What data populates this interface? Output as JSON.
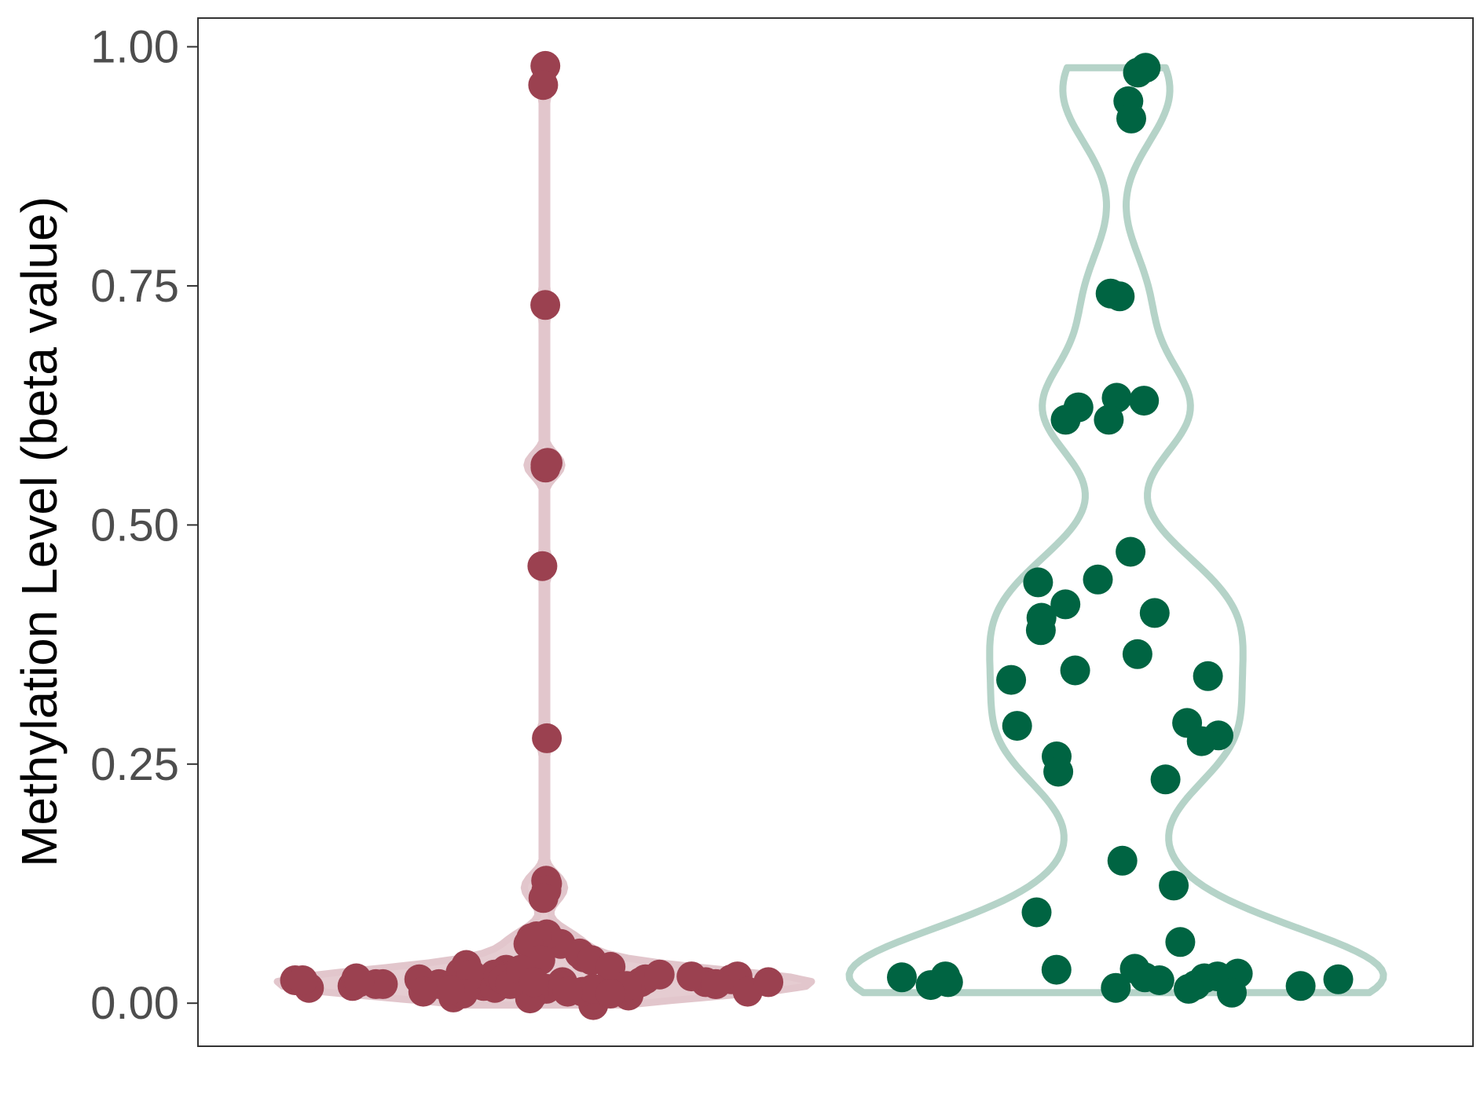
{
  "chart_data": {
    "type": "scatter",
    "ylabel": "Methylation Level (beta value)",
    "ylim": [
      -0.045,
      1.03
    ],
    "yticks": [
      0.0,
      0.25,
      0.5,
      0.75,
      1.0
    ],
    "ytick_labels": [
      "0.00",
      "0.25",
      "0.50",
      "0.75",
      "1.00"
    ],
    "grid": false,
    "series": [
      {
        "color": "#9b4150",
        "violin_color": "#e2c6cc",
        "values": [
          0.98,
          0.96,
          0.73,
          0.565,
          0.56,
          0.563,
          0.457,
          0.277,
          0.128,
          0.125,
          0.118,
          0.11,
          0.062,
          0.068,
          0.072,
          0.07,
          0.062,
          0.048,
          0.052,
          0.045,
          0.04,
          0.045,
          0.038,
          0.035,
          0.032,
          0.03,
          0.028,
          0.025,
          0.025,
          0.024,
          0.022,
          0.02,
          0.02,
          0.018,
          0.018,
          0.015,
          0.012,
          0.01,
          0.008,
          0.006,
          0.005,
          -0.002,
          0.028,
          0.03,
          0.022,
          0.02,
          0.025,
          0.018,
          0.012,
          0.026,
          0.022,
          0.016,
          0.014,
          0.01,
          0.03,
          0.028,
          0.025,
          0.022,
          0.02,
          0.016,
          0.025,
          0.022,
          0.018,
          0.024,
          0.02,
          0.014,
          0.035,
          0.012,
          0.03,
          0.022,
          0.018,
          0.02,
          0.015,
          0.01,
          0.024,
          0.012
        ]
      },
      {
        "color": "#006442",
        "violin_color": "#b5d3c8",
        "values": [
          0.978,
          0.973,
          0.943,
          0.925,
          0.742,
          0.739,
          0.633,
          0.63,
          0.623,
          0.61,
          0.61,
          0.472,
          0.443,
          0.44,
          0.417,
          0.408,
          0.403,
          0.39,
          0.365,
          0.348,
          0.342,
          0.338,
          0.293,
          0.29,
          0.28,
          0.274,
          0.258,
          0.242,
          0.234,
          0.149,
          0.123,
          0.095,
          0.064,
          0.035,
          0.036,
          0.031,
          0.028,
          0.028,
          0.027,
          0.027,
          0.026,
          0.025,
          0.024,
          0.022,
          0.019,
          0.019,
          0.018,
          0.016,
          0.015,
          0.011
        ]
      }
    ]
  }
}
